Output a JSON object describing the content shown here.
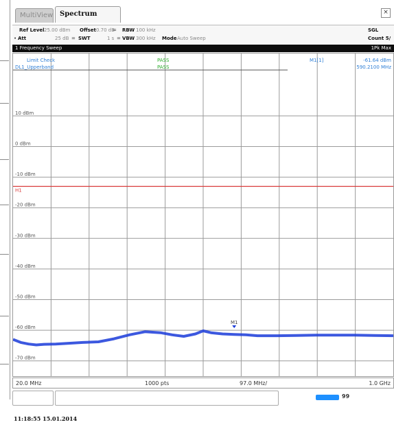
{
  "tabs": [
    {
      "label": "MultiView",
      "active": false
    },
    {
      "label": "Spectrum",
      "active": true
    }
  ],
  "settings": {
    "ref_level_label": "Ref Level",
    "ref_level_value": "25.00 dBm",
    "offset_label": "Offset",
    "offset_value": "0.70 dB",
    "rbw_label": "RBW",
    "rbw_value": "100 kHz",
    "att_label": "Att",
    "att_value": "25 dB",
    "swt_label": "SWT",
    "swt_value": "1 s",
    "vbw_label": "VBW",
    "vbw_value": "300 kHz",
    "mode_label": "Mode",
    "mode_value": "Auto Sweep",
    "sgl_label": "SGL",
    "count_label": "Count 5/"
  },
  "sweep": {
    "title": "1 Frequency Sweep",
    "right_label": "1Pk Max"
  },
  "plot": {
    "limit_check_label": "Limit Check",
    "limit_check_status": "PASS",
    "line_label": "DL1_Upperband",
    "line_status": "PASS",
    "marker_label": "M1[1]",
    "marker_value": "-61.64 dBm",
    "marker_freq": "590.2100 MHz",
    "limit_line_label": "H1",
    "marker_point_label": "M1",
    "y_tick_labels": [
      "10 dBm",
      "0 dBm",
      "-10 dBm",
      "-20 dBm",
      "-30 dBm",
      "-40 dBm",
      "-50 dBm",
      "-60 dBm",
      "-70 dBm"
    ],
    "colors": {
      "trace": "#1a3bd9",
      "limit": "#d93a3a",
      "pass": "#2cae2c",
      "info": "#2f7fd6",
      "grid": "#9a9a9a"
    }
  },
  "chart_data": {
    "type": "line",
    "title": "",
    "xlabel": "",
    "ylabel": "",
    "xlim": [
      20,
      1000
    ],
    "ylim": [
      -75,
      25
    ],
    "limit_line_y": -13,
    "series": [
      {
        "name": "1Pk Max",
        "x": [
          20,
          40,
          60,
          80,
          100,
          130,
          160,
          200,
          240,
          280,
          320,
          360,
          400,
          430,
          460,
          490,
          510,
          530,
          560,
          590,
          620,
          650,
          700,
          750,
          800,
          850,
          900,
          950,
          1000
        ],
        "y": [
          -63,
          -64,
          -64.5,
          -64.8,
          -64.6,
          -64.5,
          -64.3,
          -64,
          -63.8,
          -62.8,
          -61.5,
          -60.5,
          -60.8,
          -61.5,
          -62,
          -61.2,
          -60.2,
          -60.8,
          -61.2,
          -61.4,
          -61.5,
          -61.8,
          -61.8,
          -61.7,
          -61.6,
          -61.6,
          -61.6,
          -61.7,
          -61.8
        ]
      }
    ]
  },
  "freq_bar": {
    "start": "20.0 MHz",
    "points": "1000 pts",
    "span": "97.0 MHz/",
    "stop": "1.0 GHz"
  },
  "status": {
    "indicator_label": "99"
  },
  "timestamp": "11:18:55 15.01.2014"
}
